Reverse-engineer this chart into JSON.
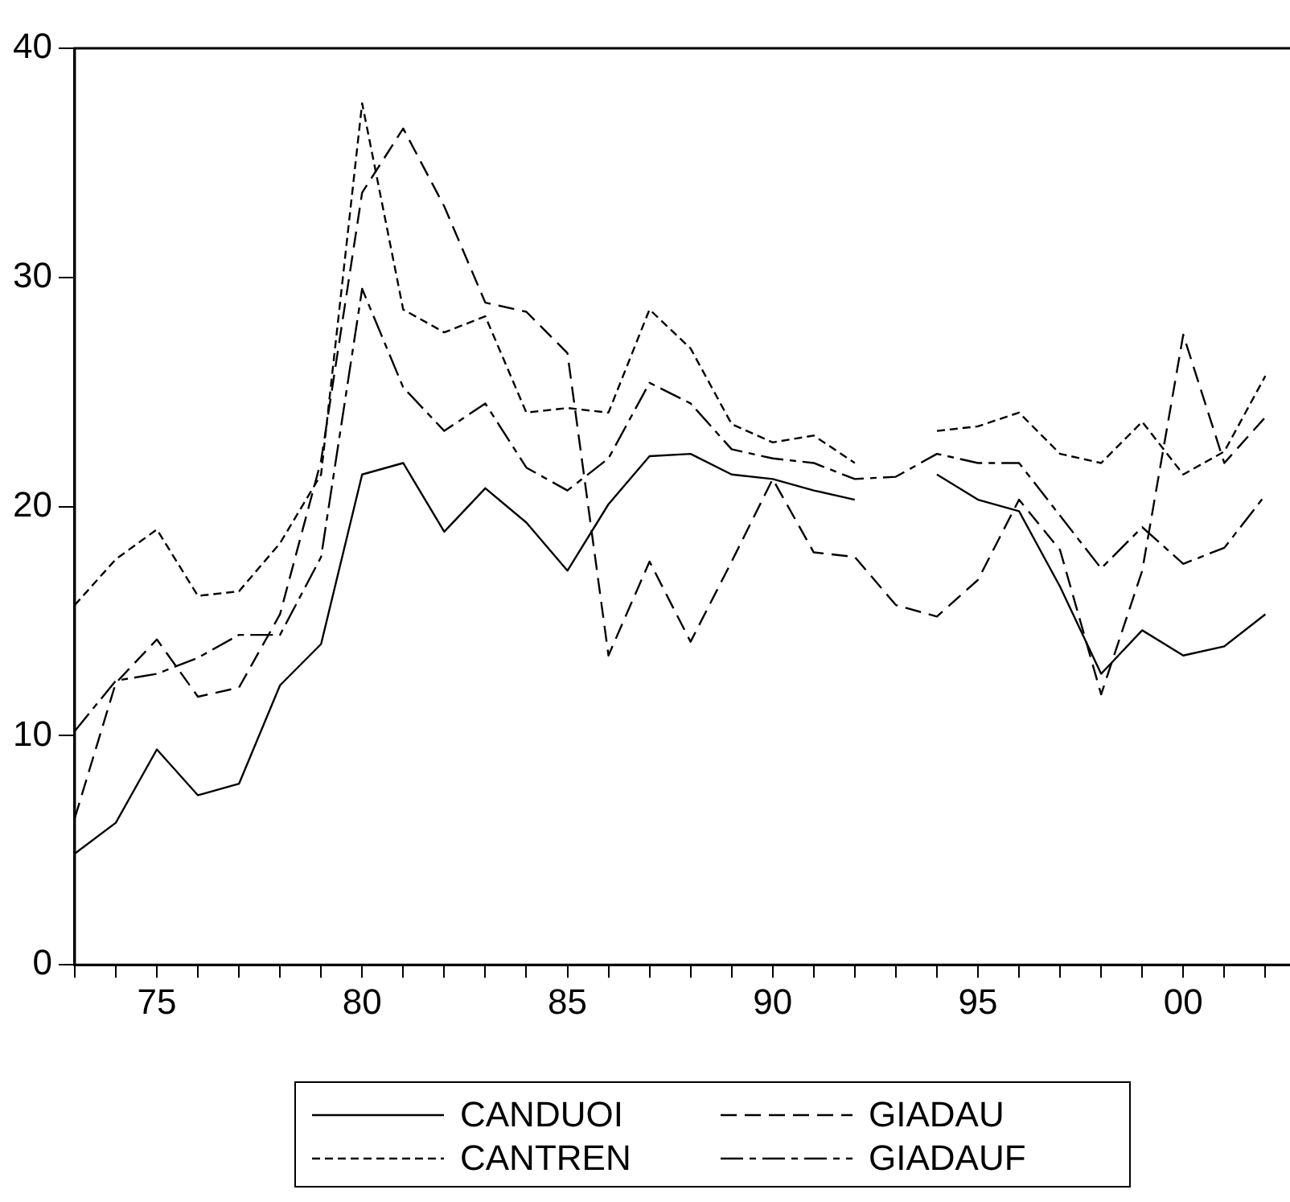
{
  "chart_data": {
    "type": "line",
    "x": [
      1973,
      1974,
      1975,
      1976,
      1977,
      1978,
      1979,
      1980,
      1981,
      1982,
      1983,
      1984,
      1985,
      1986,
      1987,
      1988,
      1989,
      1990,
      1991,
      1992,
      1993,
      1994,
      1995,
      1996,
      1997,
      1998,
      1999,
      2000,
      2001,
      2002
    ],
    "xlim": [
      1973,
      2002.6
    ],
    "xticks": [
      {
        "value": 1973,
        "label": null
      },
      {
        "value": 1974,
        "label": null
      },
      {
        "value": 1975,
        "label": "75"
      },
      {
        "value": 1976,
        "label": null
      },
      {
        "value": 1977,
        "label": null
      },
      {
        "value": 1978,
        "label": null
      },
      {
        "value": 1979,
        "label": null
      },
      {
        "value": 1980,
        "label": "80"
      },
      {
        "value": 1981,
        "label": null
      },
      {
        "value": 1982,
        "label": null
      },
      {
        "value": 1983,
        "label": null
      },
      {
        "value": 1984,
        "label": null
      },
      {
        "value": 1985,
        "label": "85"
      },
      {
        "value": 1986,
        "label": null
      },
      {
        "value": 1987,
        "label": null
      },
      {
        "value": 1988,
        "label": null
      },
      {
        "value": 1989,
        "label": null
      },
      {
        "value": 1990,
        "label": "90"
      },
      {
        "value": 1991,
        "label": null
      },
      {
        "value": 1992,
        "label": null
      },
      {
        "value": 1993,
        "label": null
      },
      {
        "value": 1994,
        "label": null
      },
      {
        "value": 1995,
        "label": "95"
      },
      {
        "value": 1996,
        "label": null
      },
      {
        "value": 1997,
        "label": null
      },
      {
        "value": 1998,
        "label": null
      },
      {
        "value": 1999,
        "label": null
      },
      {
        "value": 2000,
        "label": "00"
      },
      {
        "value": 2001,
        "label": null
      },
      {
        "value": 2002,
        "label": null
      }
    ],
    "ylim": [
      0,
      40
    ],
    "yticks": [
      0,
      10,
      20,
      30,
      40
    ],
    "legend": "bottom",
    "marker": "none",
    "series": [
      {
        "name": "CANDUOI",
        "color": "#000000",
        "line_style": "solid",
        "values": [
          4.85,
          6.2,
          9.4,
          7.4,
          7.9,
          12.2,
          14.0,
          21.4,
          21.9,
          18.9,
          20.8,
          19.3,
          17.2,
          20.1,
          22.2,
          22.3,
          21.4,
          21.2,
          20.7,
          20.3,
          null,
          21.4,
          20.3,
          19.8,
          16.5,
          12.7,
          14.6,
          13.5,
          13.9,
          15.3
        ]
      },
      {
        "name": "CANTREN",
        "color": "#000000",
        "line_style": "dotted",
        "values": [
          15.7,
          17.7,
          19.0,
          16.1,
          16.3,
          18.4,
          21.4,
          37.6,
          28.6,
          27.6,
          28.3,
          24.1,
          24.3,
          24.1,
          28.6,
          26.9,
          23.6,
          22.8,
          23.1,
          21.9,
          null,
          23.3,
          23.5,
          24.1,
          22.3,
          21.9,
          23.7,
          21.4,
          22.4,
          25.7
        ]
      },
      {
        "name": "GIADAU",
        "color": "#000000",
        "line_style": "dashed",
        "values": [
          6.4,
          12.3,
          14.2,
          11.7,
          12.1,
          15.3,
          22.0,
          33.7,
          36.5,
          33.1,
          28.9,
          28.5,
          26.7,
          13.5,
          17.6,
          14.1,
          17.6,
          21.2,
          18.0,
          17.8,
          15.7,
          15.2,
          16.8,
          20.3,
          18.1,
          11.8,
          17.2,
          27.5,
          21.9,
          23.9
        ]
      },
      {
        "name": "GIADAUF",
        "color": "#000000",
        "line_style": "dashdot",
        "values": [
          10.2,
          12.4,
          12.7,
          13.4,
          14.4,
          14.4,
          17.8,
          29.5,
          25.2,
          23.3,
          24.5,
          21.7,
          20.7,
          22.1,
          25.4,
          24.5,
          22.5,
          22.1,
          21.9,
          21.2,
          21.3,
          22.3,
          21.9,
          21.9,
          19.6,
          17.3,
          19.1,
          17.5,
          18.2,
          20.5
        ]
      }
    ]
  }
}
